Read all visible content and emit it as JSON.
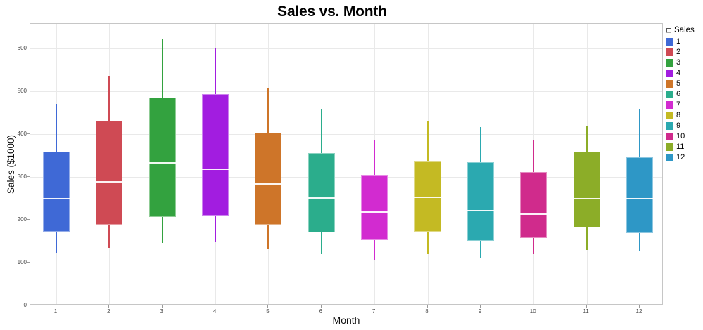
{
  "chart_data": {
    "type": "box",
    "title": "Sales vs. Month",
    "xlabel": "Month",
    "ylabel": "Sales ($1000)",
    "ylim": [
      0,
      658
    ],
    "yticks": [
      0,
      100,
      200,
      300,
      400,
      500,
      600
    ],
    "grid": true,
    "legend_position": "right",
    "legend_title": "Sales",
    "categories": [
      "1",
      "2",
      "3",
      "4",
      "5",
      "6",
      "7",
      "8",
      "9",
      "10",
      "11",
      "12"
    ],
    "series": [
      {
        "label": "1",
        "color": "#3F69D6",
        "min": 121,
        "q1": 172,
        "median": 250,
        "q3": 359,
        "max": 471
      },
      {
        "label": "2",
        "color": "#CF4A54",
        "min": 135,
        "q1": 188,
        "median": 288,
        "q3": 431,
        "max": 536
      },
      {
        "label": "3",
        "color": "#33A23F",
        "min": 146,
        "q1": 206,
        "median": 333,
        "q3": 485,
        "max": 622
      },
      {
        "label": "4",
        "color": "#A21DE0",
        "min": 147,
        "q1": 210,
        "median": 318,
        "q3": 494,
        "max": 603
      },
      {
        "label": "5",
        "color": "#CE7529",
        "min": 133,
        "q1": 188,
        "median": 284,
        "q3": 404,
        "max": 507
      },
      {
        "label": "6",
        "color": "#2BAD8C",
        "min": 119,
        "q1": 171,
        "median": 251,
        "q3": 356,
        "max": 460
      },
      {
        "label": "7",
        "color": "#D22BD0",
        "min": 105,
        "q1": 153,
        "median": 218,
        "q3": 306,
        "max": 388
      },
      {
        "label": "8",
        "color": "#C4BA23",
        "min": 120,
        "q1": 173,
        "median": 253,
        "q3": 336,
        "max": 430
      },
      {
        "label": "9",
        "color": "#2BA9B0",
        "min": 112,
        "q1": 151,
        "median": 221,
        "q3": 334,
        "max": 417
      },
      {
        "label": "10",
        "color": "#D02B8C",
        "min": 119,
        "q1": 157,
        "median": 213,
        "q3": 312,
        "max": 388
      },
      {
        "label": "11",
        "color": "#8CAD28",
        "min": 130,
        "q1": 182,
        "median": 250,
        "q3": 359,
        "max": 418
      },
      {
        "label": "12",
        "color": "#2E97C6",
        "min": 128,
        "q1": 169,
        "median": 250,
        "q3": 346,
        "max": 459
      }
    ]
  },
  "colors": {
    "gridline": "#e9e9e9",
    "plot_border": "#c6c6c6",
    "tick_text": "#4a4a4a",
    "median_line": "#ffffff"
  }
}
